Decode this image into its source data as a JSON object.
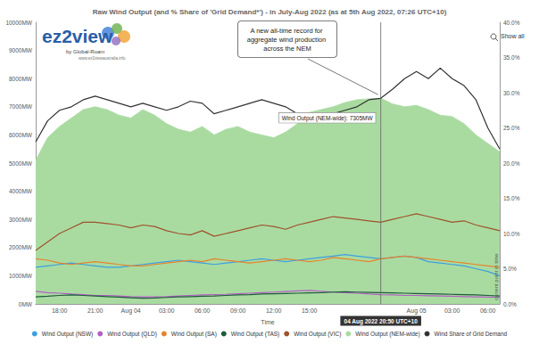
{
  "chart_data": {
    "type": "line",
    "title": "Raw Wind Output (and % Share of 'Grid Demand*') - in July-Aug 2022 (as at 5th Aug 2022, 07:26 UTC+10)",
    "logo": {
      "name": "ez2view",
      "by": "by Global-Roam",
      "url": "www.ez2viewaustralia.info"
    },
    "button": "Show all",
    "annotations": [
      "A new all-time record for aggregate wind production across the NEM",
      "Wind Output (NEM-wide): 7305MW"
    ],
    "crosshair_label": "04 Aug 2022 20:50 UTC+10",
    "side_label": "current point in time",
    "x_label": "Time",
    "categories": [
      null,
      null,
      "18:00",
      null,
      null,
      "21:00",
      null,
      null,
      "Aug 04",
      null,
      null,
      "03:00",
      null,
      null,
      "06:00",
      null,
      null,
      "09:00",
      null,
      null,
      "12:00",
      null,
      null,
      "15:00",
      null,
      null,
      null,
      null,
      null,
      null,
      null,
      null,
      "Aug 05",
      null,
      null,
      "03:00",
      null,
      null,
      "06:00",
      null
    ],
    "ylim": [
      0,
      10000
    ],
    "yticks": [
      {
        "value": 0,
        "label": "0MW"
      },
      {
        "value": 1000,
        "label": "1000MW"
      },
      {
        "value": 2000,
        "label": "2000MW"
      },
      {
        "value": 3000,
        "label": "3000MW"
      },
      {
        "value": 4000,
        "label": "4000MW"
      },
      {
        "value": 5000,
        "label": "5000MW"
      },
      {
        "value": 6000,
        "label": "6000MW"
      },
      {
        "value": 7000,
        "label": "7000MW"
      },
      {
        "value": 8000,
        "label": "8000MW"
      },
      {
        "value": 9000,
        "label": "9000MW"
      },
      {
        "value": 10000,
        "label": "10000MW"
      }
    ],
    "y2lim": [
      0,
      40
    ],
    "y2ticks": [
      {
        "value": 0,
        "label": "0.0%"
      },
      {
        "value": 5,
        "label": "5.0%"
      },
      {
        "value": 10,
        "label": "10.0%"
      },
      {
        "value": 15,
        "label": "15.0%"
      },
      {
        "value": 20,
        "label": "20.0%"
      },
      {
        "value": 25,
        "label": "25.0%"
      },
      {
        "value": 30,
        "label": "30.0%"
      },
      {
        "value": 35,
        "label": "35.0%"
      },
      {
        "value": 40,
        "label": "40.0%"
      }
    ],
    "grid": false,
    "legend": "bottom",
    "series": [
      {
        "name": "Wind Output (NSW)",
        "color": "#3d9fe0",
        "values": [
          1300,
          1350,
          1400,
          1450,
          1400,
          1350,
          1300,
          1300,
          1350,
          1400,
          1450,
          1500,
          1550,
          1500,
          1450,
          1400,
          1450,
          1500,
          1550,
          1600,
          1550,
          1500,
          1550,
          1600,
          1650,
          1700,
          1750,
          1700,
          1650,
          1600,
          1650,
          1700,
          1650,
          1500,
          1450,
          1400,
          1350,
          1250,
          1150,
          1000
        ]
      },
      {
        "name": "Wind Output (QLD)",
        "color": "#b45fc4",
        "values": [
          450,
          400,
          380,
          350,
          330,
          300,
          300,
          280,
          260,
          250,
          250,
          260,
          280,
          300,
          320,
          330,
          340,
          360,
          380,
          400,
          420,
          440,
          460,
          480,
          450,
          420,
          400,
          380,
          350,
          330,
          320,
          300,
          300,
          290,
          280,
          270,
          260,
          250,
          240,
          230
        ]
      },
      {
        "name": "Wind Output (SA)",
        "color": "#e8822a",
        "values": [
          1600,
          1550,
          1450,
          1400,
          1450,
          1500,
          1450,
          1400,
          1350,
          1350,
          1400,
          1450,
          1500,
          1550,
          1500,
          1600,
          1550,
          1500,
          1450,
          1500,
          1550,
          1600,
          1550,
          1500,
          1550,
          1650,
          1600,
          1550,
          1500,
          1600,
          1650,
          1700,
          1650,
          1600,
          1550,
          1500,
          1450,
          1400,
          1350,
          1300
        ]
      },
      {
        "name": "Wind Output (TAS)",
        "color": "#1f5a3c",
        "values": [
          250,
          270,
          300,
          320,
          300,
          280,
          260,
          240,
          220,
          200,
          210,
          230,
          250,
          260,
          270,
          280,
          300,
          320,
          330,
          350,
          360,
          370,
          380,
          390,
          400,
          420,
          430,
          420,
          410,
          400,
          390,
          380,
          370,
          360,
          350,
          340,
          330,
          320,
          300,
          280
        ]
      },
      {
        "name": "Wind Output (VIC)",
        "color": "#a0522d",
        "values": [
          1900,
          2200,
          2500,
          2700,
          2900,
          2900,
          2850,
          2800,
          2700,
          2800,
          2750,
          2600,
          2500,
          2450,
          2600,
          2400,
          2500,
          2600,
          2700,
          2800,
          2750,
          2650,
          2800,
          2900,
          3000,
          3100,
          3050,
          3000,
          2950,
          2900,
          3000,
          3100,
          3200,
          3100,
          3000,
          2900,
          2950,
          2800,
          2700,
          2600
        ]
      },
      {
        "name": "Wind Output (NEM-wide)",
        "color": "#a9dba1",
        "type": "area",
        "values": [
          5100,
          5900,
          6300,
          6600,
          6900,
          7000,
          6900,
          6700,
          6600,
          6900,
          6700,
          6400,
          6200,
          6100,
          6300,
          6000,
          6200,
          6300,
          6100,
          6000,
          5900,
          6100,
          6400,
          6800,
          6900,
          7000,
          7150,
          7250,
          7280,
          7305,
          7100,
          7000,
          7050,
          6900,
          6700,
          6650,
          6400,
          6000,
          5700,
          5400
        ]
      },
      {
        "name": "Wind Share of Grid Demand",
        "color": "#333333",
        "axis": "y2",
        "values": [
          23,
          26,
          27.5,
          28,
          29,
          29.5,
          29,
          28.5,
          28,
          28.5,
          28,
          27.5,
          28,
          28.8,
          28.5,
          27,
          27.5,
          28,
          28.5,
          29,
          28.5,
          28,
          27,
          26.5,
          27,
          27,
          27.5,
          28,
          29,
          29.2,
          30.5,
          32,
          33,
          32,
          33.5,
          32,
          31,
          29,
          25,
          22
        ]
      }
    ]
  }
}
